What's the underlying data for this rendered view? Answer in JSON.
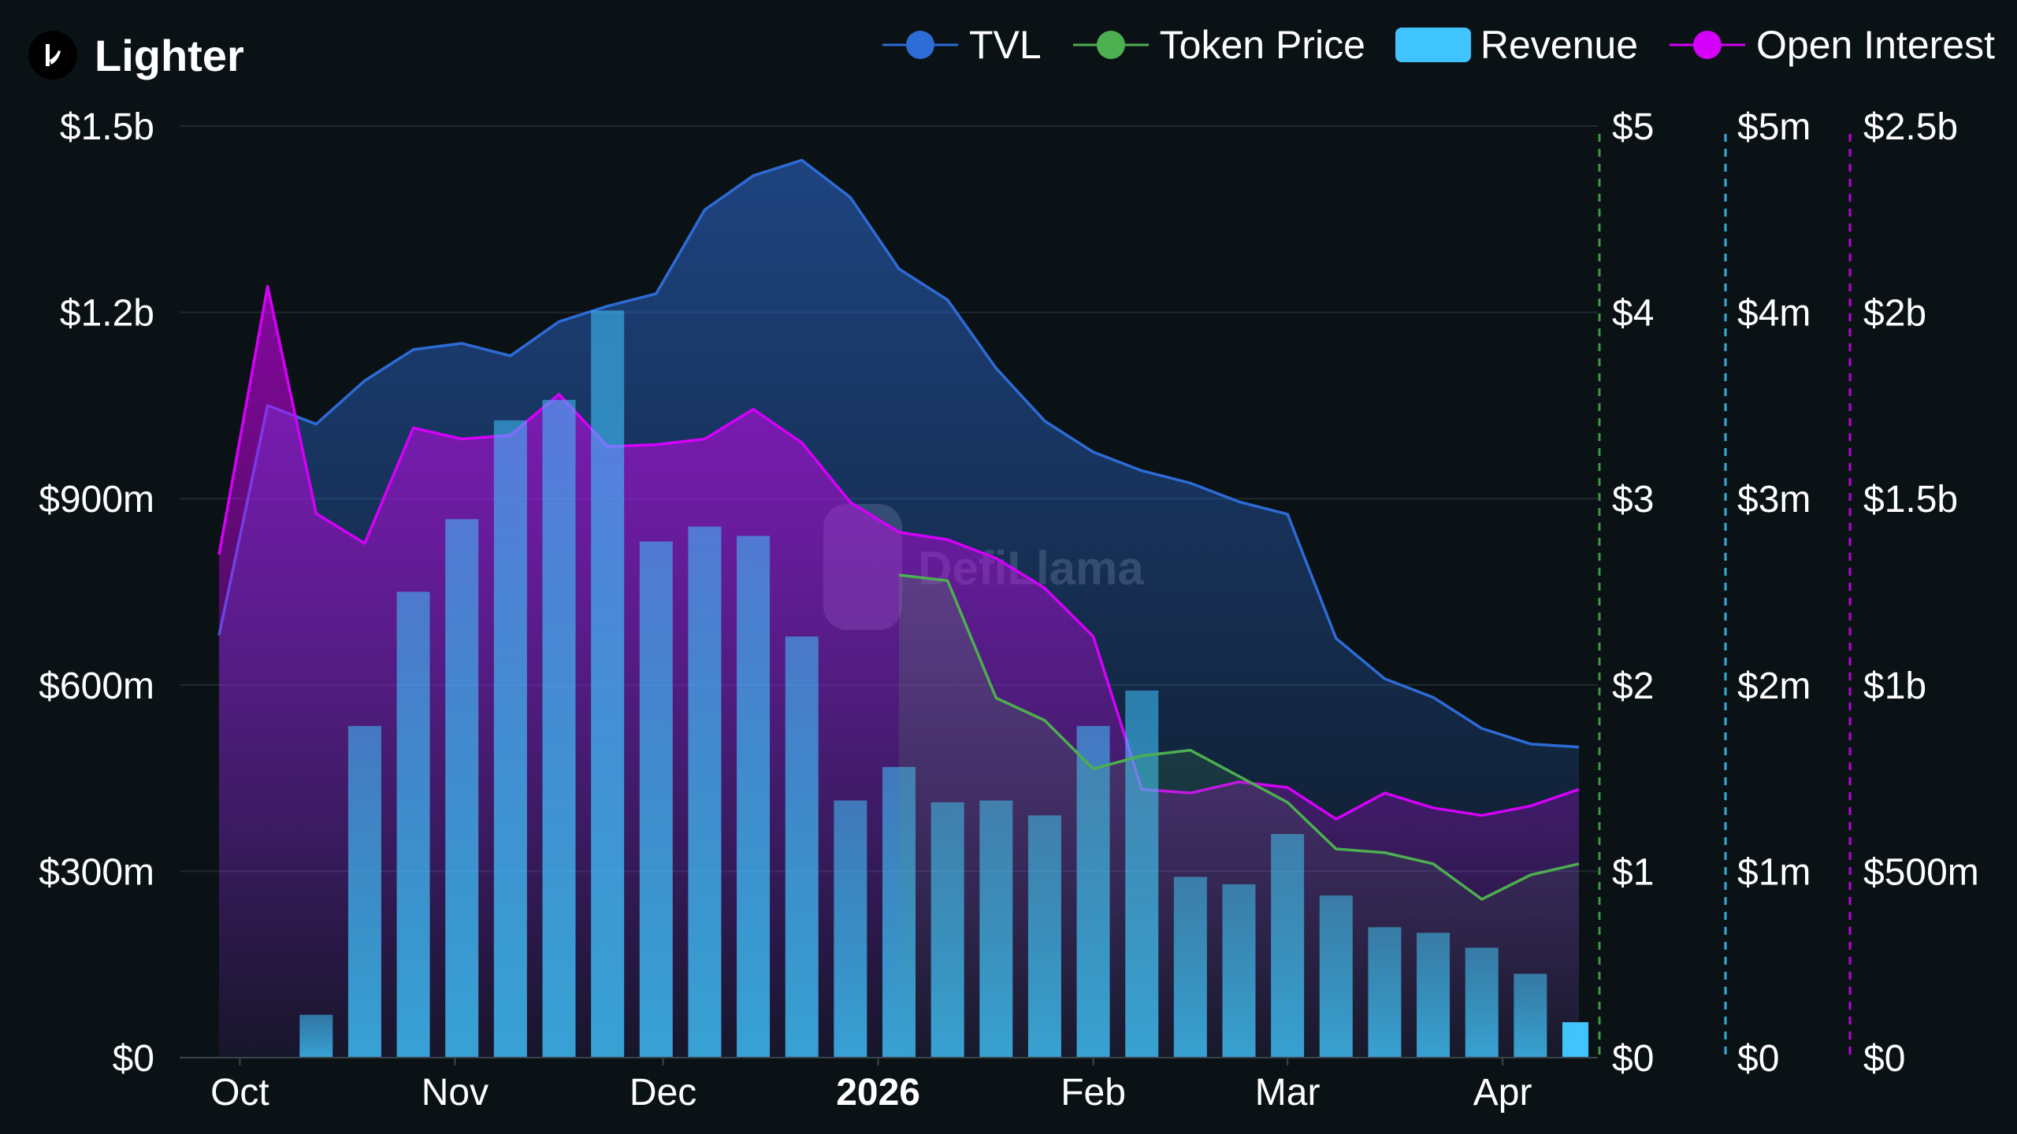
{
  "app": {
    "name": "Lighter"
  },
  "watermark": "DefiLlama",
  "colors": {
    "background": "#0b1215",
    "tvl": "#2d6bd6",
    "token_price": "#4caf50",
    "revenue": "#40c4ff",
    "open_interest": "#d500f9",
    "grid": "#1f2a30",
    "text": "#ffffff"
  },
  "legend": [
    {
      "key": "tvl",
      "label": "TVL",
      "icon": "line-dot"
    },
    {
      "key": "token_price",
      "label": "Token Price",
      "icon": "line-dot"
    },
    {
      "key": "revenue",
      "label": "Revenue",
      "icon": "bar"
    },
    {
      "key": "open_interest",
      "label": "Open Interest",
      "icon": "line-dot"
    }
  ],
  "chart_data": {
    "type": "line",
    "title": "",
    "x_axis": {
      "type": "date",
      "ticks": [
        {
          "label": "Oct",
          "date": "2025-10-01",
          "bold": false
        },
        {
          "label": "Nov",
          "date": "2025-11-01",
          "bold": false
        },
        {
          "label": "Dec",
          "date": "2025-12-01",
          "bold": false
        },
        {
          "label": "2026",
          "date": "2026-01-01",
          "bold": true
        },
        {
          "label": "Feb",
          "date": "2026-02-01",
          "bold": false
        },
        {
          "label": "Mar",
          "date": "2026-03-01",
          "bold": false
        },
        {
          "label": "Apr",
          "date": "2026-04-01",
          "bold": false
        }
      ],
      "range": [
        "2025-09-28",
        "2026-04-12"
      ]
    },
    "y_axes": [
      {
        "id": "tvl",
        "position": "left",
        "range": [
          0,
          1500000000
        ],
        "ticks": [
          {
            "value": 0,
            "label": "$0"
          },
          {
            "value": 300000000,
            "label": "$300m"
          },
          {
            "value": 600000000,
            "label": "$600m"
          },
          {
            "value": 900000000,
            "label": "$900m"
          },
          {
            "value": 1200000000,
            "label": "$1.2b"
          },
          {
            "value": 1500000000,
            "label": "$1.5b"
          }
        ]
      },
      {
        "id": "token_price",
        "position": "right",
        "range": [
          0,
          5
        ],
        "ticks": [
          {
            "value": 0,
            "label": "$0"
          },
          {
            "value": 1,
            "label": "$1"
          },
          {
            "value": 2,
            "label": "$2"
          },
          {
            "value": 3,
            "label": "$3"
          },
          {
            "value": 4,
            "label": "$4"
          },
          {
            "value": 5,
            "label": "$5"
          }
        ]
      },
      {
        "id": "revenue",
        "position": "right",
        "range": [
          0,
          5000000
        ],
        "ticks": [
          {
            "value": 0,
            "label": "$0"
          },
          {
            "value": 1000000,
            "label": "$1m"
          },
          {
            "value": 2000000,
            "label": "$2m"
          },
          {
            "value": 3000000,
            "label": "$3m"
          },
          {
            "value": 4000000,
            "label": "$4m"
          },
          {
            "value": 5000000,
            "label": "$5m"
          }
        ]
      },
      {
        "id": "open_interest",
        "position": "right",
        "range": [
          0,
          2500000000
        ],
        "ticks": [
          {
            "value": 0,
            "label": "$0"
          },
          {
            "value": 500000000,
            "label": "$500m"
          },
          {
            "value": 1000000000,
            "label": "$1b"
          },
          {
            "value": 1500000000,
            "label": "$1.5b"
          },
          {
            "value": 2000000000,
            "label": "$2b"
          },
          {
            "value": 2500000000,
            "label": "$2.5b"
          }
        ]
      }
    ],
    "series": [
      {
        "name": "TVL",
        "axis": "tvl",
        "kind": "area-line",
        "points": [
          [
            "2025-09-28",
            680000000
          ],
          [
            "2025-10-05",
            1050000000
          ],
          [
            "2025-10-12",
            1020000000
          ],
          [
            "2025-10-19",
            1090000000
          ],
          [
            "2025-10-26",
            1140000000
          ],
          [
            "2025-11-02",
            1150000000
          ],
          [
            "2025-11-09",
            1130000000
          ],
          [
            "2025-11-16",
            1185000000
          ],
          [
            "2025-11-23",
            1210000000
          ],
          [
            "2025-11-30",
            1230000000
          ],
          [
            "2025-12-07",
            1365000000
          ],
          [
            "2025-12-14",
            1420000000
          ],
          [
            "2025-12-21",
            1445000000
          ],
          [
            "2025-12-28",
            1385000000
          ],
          [
            "2026-01-04",
            1270000000
          ],
          [
            "2026-01-11",
            1220000000
          ],
          [
            "2026-01-18",
            1110000000
          ],
          [
            "2026-01-25",
            1025000000
          ],
          [
            "2026-02-01",
            975000000
          ],
          [
            "2026-02-08",
            945000000
          ],
          [
            "2026-02-15",
            925000000
          ],
          [
            "2026-02-22",
            895000000
          ],
          [
            "2026-03-01",
            875000000
          ],
          [
            "2026-03-08",
            675000000
          ],
          [
            "2026-03-15",
            610000000
          ],
          [
            "2026-03-22",
            580000000
          ],
          [
            "2026-03-29",
            530000000
          ],
          [
            "2026-04-05",
            505000000
          ],
          [
            "2026-04-12",
            500000000
          ]
        ]
      },
      {
        "name": "Revenue",
        "axis": "revenue",
        "kind": "bar",
        "points": [
          [
            "2025-10-12",
            230000
          ],
          [
            "2025-10-19",
            1780000
          ],
          [
            "2025-10-26",
            2500000
          ],
          [
            "2025-11-02",
            2890000
          ],
          [
            "2025-11-09",
            3420000
          ],
          [
            "2025-11-16",
            3530000
          ],
          [
            "2025-11-23",
            4010000
          ],
          [
            "2025-11-30",
            2770000
          ],
          [
            "2025-12-07",
            2850000
          ],
          [
            "2025-12-14",
            2800000
          ],
          [
            "2025-12-21",
            2260000
          ],
          [
            "2025-12-28",
            1380000
          ],
          [
            "2026-01-04",
            1560000
          ],
          [
            "2026-01-11",
            1370000
          ],
          [
            "2026-01-18",
            1380000
          ],
          [
            "2026-01-25",
            1300000
          ],
          [
            "2026-02-01",
            1780000
          ],
          [
            "2026-02-08",
            1970000
          ],
          [
            "2026-02-15",
            970000
          ],
          [
            "2026-02-22",
            930000
          ],
          [
            "2026-03-01",
            1200000
          ],
          [
            "2026-03-08",
            870000
          ],
          [
            "2026-03-15",
            700000
          ],
          [
            "2026-03-22",
            670000
          ],
          [
            "2026-03-29",
            590000
          ],
          [
            "2026-04-05",
            450000
          ],
          [
            "2026-04-12",
            190000
          ]
        ]
      },
      {
        "name": "Open Interest",
        "axis": "open_interest",
        "kind": "area-line",
        "points": [
          [
            "2025-09-28",
            1350000000
          ],
          [
            "2025-10-05",
            2070000000
          ],
          [
            "2025-10-12",
            1460000000
          ],
          [
            "2025-10-19",
            1380000000
          ],
          [
            "2025-10-26",
            1690000000
          ],
          [
            "2025-11-02",
            1660000000
          ],
          [
            "2025-11-09",
            1670000000
          ],
          [
            "2025-11-16",
            1780000000
          ],
          [
            "2025-11-23",
            1640000000
          ],
          [
            "2025-11-30",
            1645000000
          ],
          [
            "2025-12-07",
            1660000000
          ],
          [
            "2025-12-14",
            1740000000
          ],
          [
            "2025-12-21",
            1650000000
          ],
          [
            "2025-12-28",
            1490000000
          ],
          [
            "2026-01-04",
            1410000000
          ],
          [
            "2026-01-11",
            1390000000
          ],
          [
            "2026-01-18",
            1340000000
          ],
          [
            "2026-01-25",
            1260000000
          ],
          [
            "2026-02-01",
            1130000000
          ],
          [
            "2026-02-08",
            720000000
          ],
          [
            "2026-02-15",
            710000000
          ],
          [
            "2026-02-22",
            740000000
          ],
          [
            "2026-03-01",
            725000000
          ],
          [
            "2026-03-08",
            640000000
          ],
          [
            "2026-03-15",
            710000000
          ],
          [
            "2026-03-22",
            670000000
          ],
          [
            "2026-03-29",
            650000000
          ],
          [
            "2026-04-05",
            675000000
          ],
          [
            "2026-04-12",
            720000000
          ]
        ]
      },
      {
        "name": "Token Price",
        "axis": "token_price",
        "kind": "area-line",
        "points": [
          [
            "2026-01-04",
            2.59
          ],
          [
            "2026-01-11",
            2.56
          ],
          [
            "2026-01-18",
            1.93
          ],
          [
            "2026-01-25",
            1.81
          ],
          [
            "2026-02-01",
            1.55
          ],
          [
            "2026-02-08",
            1.62
          ],
          [
            "2026-02-15",
            1.65
          ],
          [
            "2026-02-22",
            1.51
          ],
          [
            "2026-03-01",
            1.37
          ],
          [
            "2026-03-08",
            1.12
          ],
          [
            "2026-03-15",
            1.1
          ],
          [
            "2026-03-22",
            1.04
          ],
          [
            "2026-03-29",
            0.85
          ],
          [
            "2026-04-05",
            0.98
          ],
          [
            "2026-04-12",
            1.04
          ]
        ]
      }
    ]
  }
}
